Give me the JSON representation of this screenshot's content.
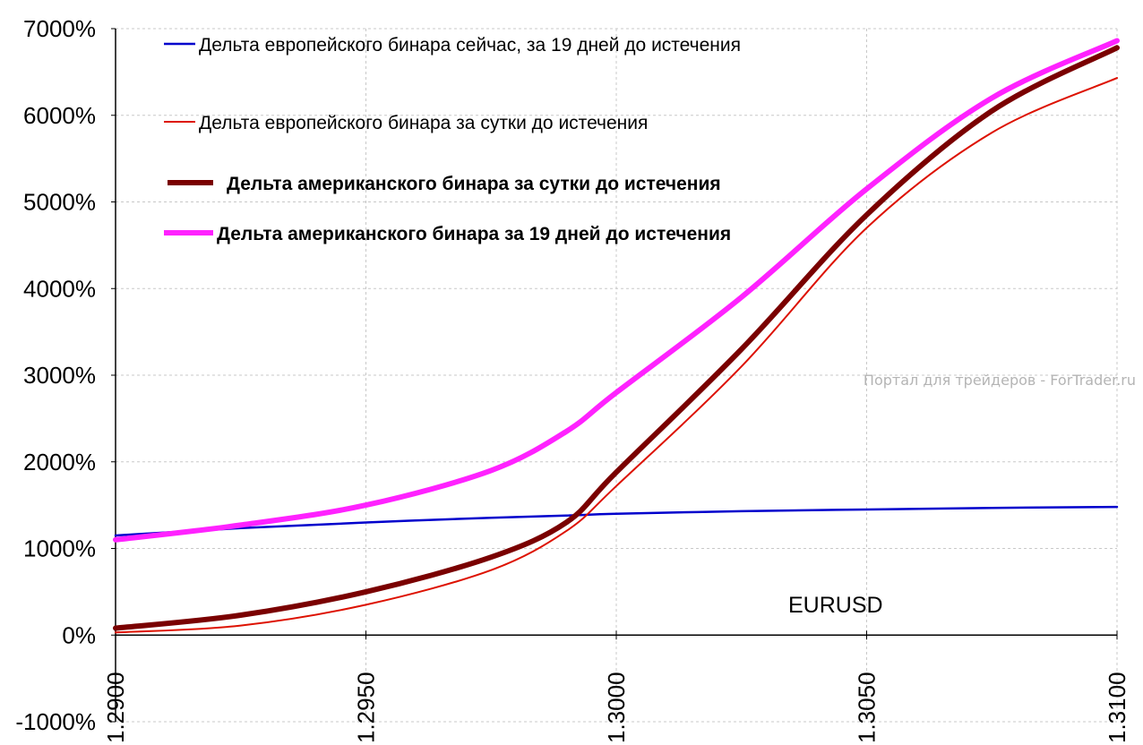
{
  "chart_data": {
    "type": "line",
    "xlabel": "",
    "ylabel": "",
    "xlim": [
      1.29,
      1.31
    ],
    "ylim": [
      -1000,
      7000
    ],
    "x_ticks": [
      "1.2900",
      "1.2950",
      "1.3000",
      "1.3050",
      "1.3100"
    ],
    "y_ticks": [
      "-1000%",
      "0%",
      "1000%",
      "2000%",
      "3000%",
      "4000%",
      "5000%",
      "6000%",
      "7000%"
    ],
    "grid": true,
    "legend_position": "top-left",
    "annotation": "EURUSD",
    "watermark": "Портал для трейдеров - ForTrader.ru",
    "x": [
      1.29,
      1.2925,
      1.295,
      1.2975,
      1.299,
      1.3,
      1.3025,
      1.305,
      1.3075,
      1.31
    ],
    "series": [
      {
        "name": "Дельта европейского бинара сейчас, за 19 дней до истечения",
        "color": "#0000cc",
        "stroke": 2.5,
        "bold_label": false,
        "values": [
          1150,
          1235,
          1300,
          1355,
          1380,
          1400,
          1430,
          1450,
          1468,
          1480
        ]
      },
      {
        "name": "Дельта европейского бинара за сутки до истечения",
        "color": "#dd1100",
        "stroke": 2,
        "bold_label": false,
        "values": [
          30,
          110,
          350,
          750,
          1200,
          1720,
          3100,
          4700,
          5800,
          6430
        ]
      },
      {
        "name": "Дельта американского бинара за сутки до истечения",
        "color": "#7a0000",
        "stroke": 6,
        "bold_label": true,
        "values": [
          80,
          230,
          500,
          900,
          1300,
          1880,
          3300,
          4850,
          6050,
          6780
        ]
      },
      {
        "name": "Дельта американского бинара за 19 дней до истечения",
        "color": "#ff22ff",
        "stroke": 6,
        "bold_label": true,
        "values": [
          1100,
          1270,
          1500,
          1900,
          2350,
          2800,
          3900,
          5150,
          6200,
          6860
        ]
      }
    ]
  }
}
